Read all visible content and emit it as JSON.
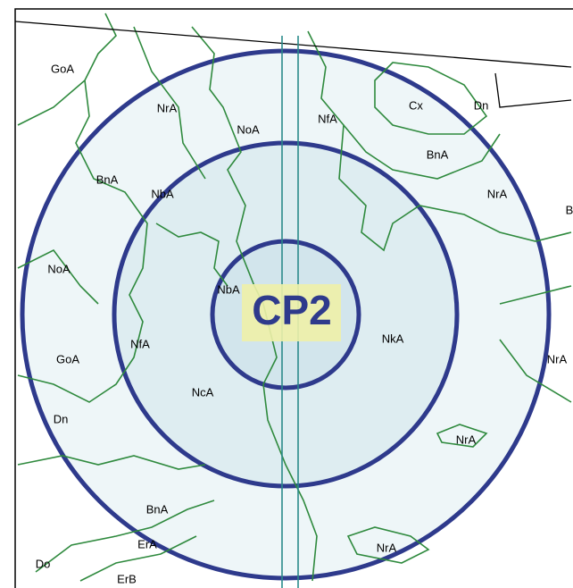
{
  "center_label": "CP2",
  "labels": [
    "GoA",
    "NrA",
    "NoA",
    "NfA",
    "Cx",
    "Dn",
    "BnA",
    "BnA",
    "NbA",
    "NrA",
    "B",
    "NoA",
    "NbA",
    "NfA",
    "NkA",
    "GoA",
    "NrA",
    "NcA",
    "Dn",
    "NrA",
    "BnA",
    "ErA",
    "NrA",
    "Do",
    "ErB"
  ]
}
